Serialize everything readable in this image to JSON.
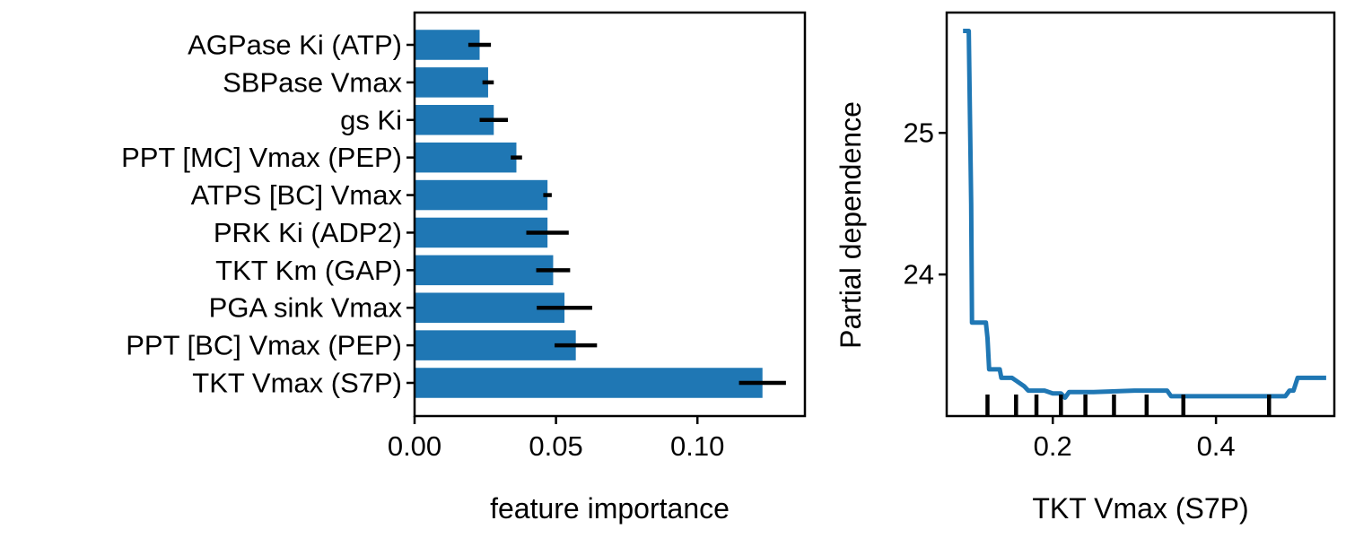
{
  "colors": {
    "bar": "#1f77b4",
    "line": "#1f77b4",
    "error": "#000000",
    "axis": "#000000",
    "background": "#ffffff"
  },
  "chart_data": [
    {
      "type": "bar",
      "orientation": "horizontal",
      "title": "",
      "xlabel": "feature importance",
      "ylabel": "",
      "xlim": [
        0,
        0.138
      ],
      "xticks": [
        {
          "value": 0.0,
          "label": "0.00"
        },
        {
          "value": 0.05,
          "label": "0.05"
        },
        {
          "value": 0.1,
          "label": "0.10"
        }
      ],
      "grid": false,
      "categories": [
        "AGPase Ki (ATP)",
        "SBPase Vmax",
        "gs Ki",
        "PPT [MC] Vmax (PEP)",
        "ATPS [BC] Vmax",
        "PRK Ki (ADP2)",
        "TKT Km (GAP)",
        "PGA sink Vmax",
        "PPT [BC] Vmax (PEP)",
        "TKT Vmax (S7P)"
      ],
      "values": [
        0.023,
        0.026,
        0.028,
        0.036,
        0.047,
        0.047,
        0.049,
        0.053,
        0.057,
        0.123
      ],
      "errors": [
        0.004,
        0.002,
        0.005,
        0.002,
        0.0015,
        0.0075,
        0.006,
        0.0098,
        0.0075,
        0.0083
      ]
    },
    {
      "type": "line",
      "title": "",
      "xlabel": "TKT Vmax (S7P)",
      "ylabel": "Partial dependence",
      "xlim": [
        0.07,
        0.545
      ],
      "ylim": [
        23.0,
        25.85
      ],
      "xticks": [
        {
          "value": 0.2,
          "label": "0.2"
        },
        {
          "value": 0.4,
          "label": "0.4"
        }
      ],
      "yticks": [
        {
          "value": 24,
          "label": "24"
        },
        {
          "value": 25,
          "label": "25"
        }
      ],
      "grid": false,
      "x": [
        0.09,
        0.097,
        0.1,
        0.101,
        0.11,
        0.118,
        0.12,
        0.122,
        0.13,
        0.135,
        0.137,
        0.15,
        0.155,
        0.165,
        0.17,
        0.19,
        0.2,
        0.21,
        0.215,
        0.22,
        0.25,
        0.3,
        0.34,
        0.345,
        0.4,
        0.45,
        0.48,
        0.485,
        0.49,
        0.495,
        0.5,
        0.51,
        0.535
      ],
      "y": [
        25.72,
        25.72,
        24.5,
        23.66,
        23.66,
        23.66,
        23.55,
        23.33,
        23.33,
        23.33,
        23.27,
        23.27,
        23.25,
        23.21,
        23.18,
        23.18,
        23.16,
        23.16,
        23.13,
        23.17,
        23.17,
        23.18,
        23.18,
        23.14,
        23.14,
        23.14,
        23.14,
        23.14,
        23.18,
        23.18,
        23.27,
        23.27,
        23.27
      ],
      "rug_x": [
        0.12,
        0.155,
        0.18,
        0.21,
        0.24,
        0.275,
        0.315,
        0.36,
        0.465
      ]
    }
  ]
}
